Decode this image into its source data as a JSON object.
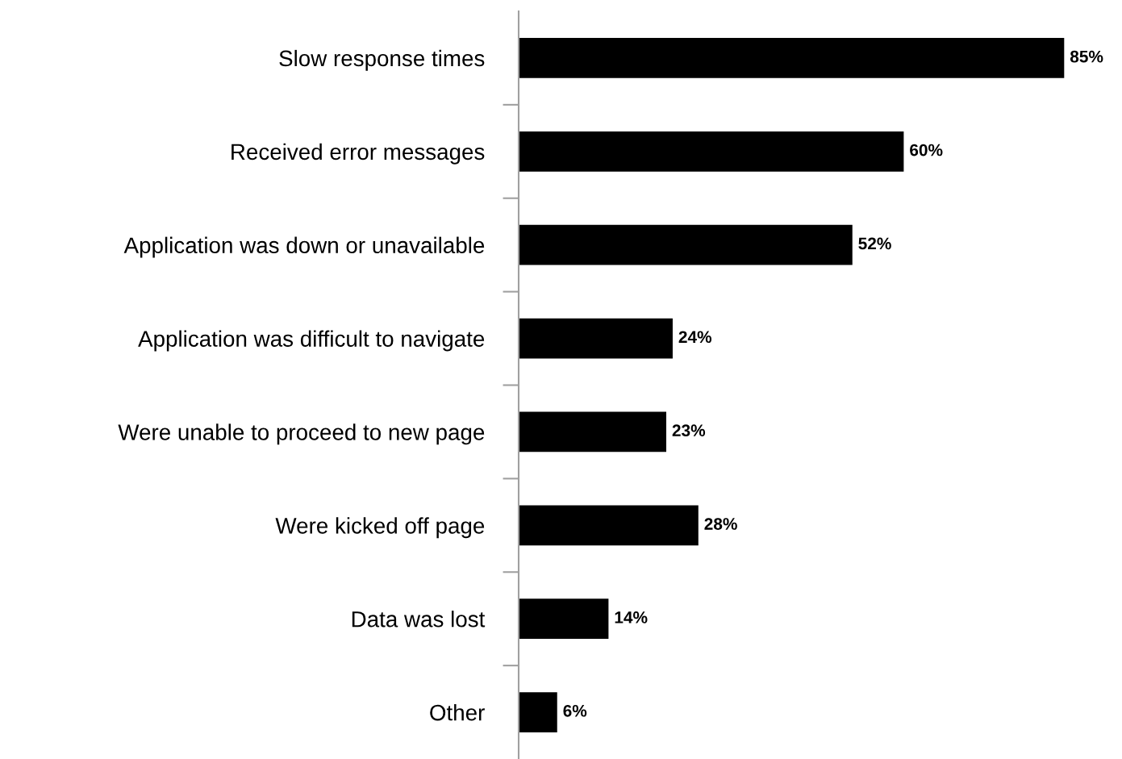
{
  "chart_data": {
    "type": "bar",
    "orientation": "horizontal",
    "categories": [
      "Slow response times",
      "Received error messages",
      "Application was down or unavailable",
      "Application was difficult to navigate",
      "Were unable to proceed to new page",
      "Were kicked off page",
      "Data was lost",
      "Other"
    ],
    "values": [
      85,
      60,
      52,
      24,
      23,
      28,
      14,
      6
    ],
    "value_labels": [
      "85%",
      "60%",
      "52%",
      "24%",
      "23%",
      "28%",
      "14%",
      "6%"
    ],
    "color": "#000000",
    "tick_labels": "y",
    "grid": false,
    "legend": false
  }
}
